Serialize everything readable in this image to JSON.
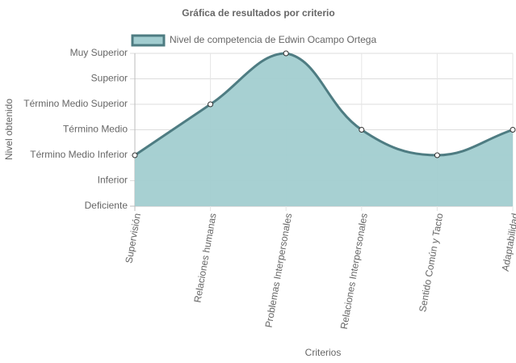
{
  "chart_data": {
    "type": "area",
    "title": "Gráfica de resultados por criterio",
    "x_label": "Criterios",
    "y_label": "Nivel obtenido",
    "categories": [
      "Supervisión",
      "Relaciones humanas",
      "Problemas Interpersonales",
      "Relaciones Interpersonales",
      "Sentido Común y Tacto",
      "Adaptabilidad"
    ],
    "series": [
      {
        "name": "Nivel de competencia de Edwin Ocampo Ortega",
        "color": "#4e7c82",
        "fill_color": "#a2cdd0",
        "values": [
          2,
          4,
          6,
          3,
          2,
          3
        ]
      }
    ],
    "ylim": [
      0,
      6
    ],
    "yticks": [
      {
        "value": 0,
        "label": "Deficiente"
      },
      {
        "value": 1,
        "label": "Inferior"
      },
      {
        "value": 2,
        "label": "Término Medio Inferior"
      },
      {
        "value": 3,
        "label": "Término Medio"
      },
      {
        "value": 4,
        "label": "Término Medio Superior"
      },
      {
        "value": 5,
        "label": "Superior"
      },
      {
        "value": 6,
        "label": "Muy Superior"
      }
    ],
    "grid": true,
    "legend": "top"
  }
}
